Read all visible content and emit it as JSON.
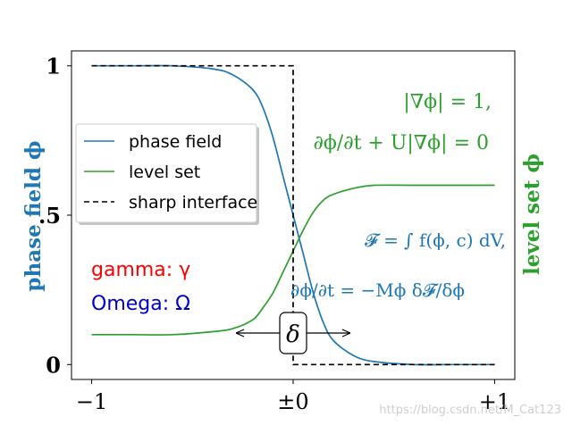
{
  "chart_data": {
    "type": "line",
    "xlim": [
      -1.1,
      1.1
    ],
    "ylim": [
      -0.05,
      1.05
    ],
    "xticks": [
      {
        "value": -1,
        "label": "−1"
      },
      {
        "value": 0,
        "label": "±0"
      },
      {
        "value": 1,
        "label": "+1"
      }
    ],
    "yticks": [
      {
        "value": 0,
        "label": "0"
      },
      {
        "value": 0.5,
        "label": ".5"
      },
      {
        "value": 1,
        "label": "1"
      }
    ],
    "ylabel_left": "phase field ϕ",
    "ylabel_right": "level set ϕ",
    "legend_position": "left",
    "series": [
      {
        "name": "phase field",
        "color": "#1f77b4",
        "style": "solid",
        "x": [
          -1.0,
          -0.8,
          -0.6,
          -0.4,
          -0.3,
          -0.2,
          -0.15,
          -0.1,
          -0.05,
          0.0,
          0.05,
          0.1,
          0.15,
          0.2,
          0.3,
          0.4,
          0.6,
          0.8,
          1.0
        ],
        "y": [
          1.0,
          1.0,
          1.0,
          0.99,
          0.97,
          0.92,
          0.86,
          0.76,
          0.63,
          0.5,
          0.37,
          0.24,
          0.14,
          0.08,
          0.03,
          0.01,
          0.0,
          0.0,
          0.0
        ]
      },
      {
        "name": "level set",
        "color": "#2ca02c",
        "style": "solid",
        "x": [
          -1.0,
          -0.8,
          -0.6,
          -0.4,
          -0.3,
          -0.2,
          -0.15,
          -0.1,
          -0.05,
          0.0,
          0.05,
          0.1,
          0.15,
          0.2,
          0.3,
          0.4,
          0.6,
          0.8,
          1.0
        ],
        "y": [
          0.1,
          0.1,
          0.1,
          0.11,
          0.12,
          0.15,
          0.19,
          0.24,
          0.31,
          0.38,
          0.45,
          0.51,
          0.55,
          0.57,
          0.59,
          0.6,
          0.6,
          0.6,
          0.6
        ]
      },
      {
        "name": "sharp interface",
        "color": "#000000",
        "style": "dashed",
        "x": [
          -1.0,
          0.0,
          0.0,
          1.0
        ],
        "y": [
          1.0,
          1.0,
          0.0,
          0.0
        ]
      }
    ],
    "annotations": [
      {
        "id": "gamma",
        "text": "gamma: γ",
        "color": "#ff0000"
      },
      {
        "id": "omega",
        "text": "Omega: Ω",
        "color": "#0000cd"
      },
      {
        "id": "delta",
        "text": "δ",
        "color": "#000000"
      },
      {
        "id": "eq1",
        "text": "|∇ϕ|  =  1,",
        "color": "#2ca02c"
      },
      {
        "id": "eq2",
        "text": "∂ϕ/∂t + U|∇ϕ|  =  0",
        "color": "#2ca02c"
      },
      {
        "id": "eq3",
        "text": "𝓕  =  ∫ f(ϕ, c) dV,",
        "color": "#1f77b4"
      },
      {
        "id": "eq4",
        "text": "∂ϕ/∂t  =  −Mϕ δ𝓕/δϕ",
        "color": "#1f77b4"
      }
    ],
    "watermark": "https://blog.csdn.net/M_Cat123"
  }
}
